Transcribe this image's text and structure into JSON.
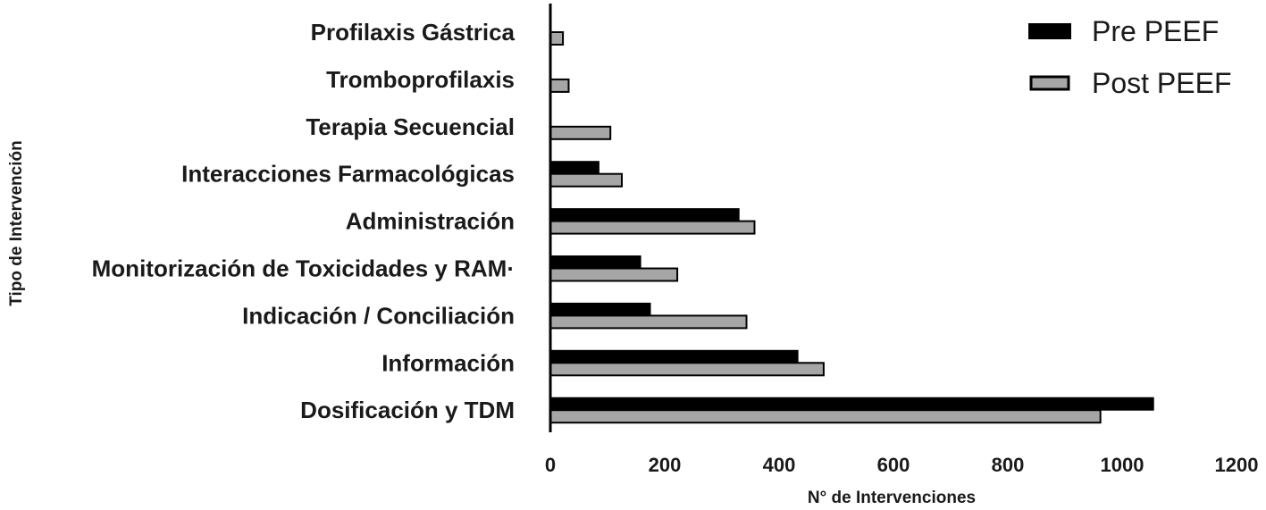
{
  "chart_data": {
    "type": "bar",
    "orientation": "horizontal",
    "categories": [
      "Profilaxis Gástrica",
      "Tromboprofilaxis",
      "Terapia Secuencial",
      "Interacciones Farmacológicas",
      "Administración",
      "Monitorización de Toxicidades y RAM·",
      "Indicación / Conciliación",
      "Información",
      "Dosificación y TDM"
    ],
    "series": [
      {
        "name": "Pre PEEF",
        "color": "#000000",
        "values": [
          0,
          0,
          0,
          85,
          330,
          158,
          175,
          433,
          1055
        ]
      },
      {
        "name": "Post PEEF",
        "color": "#a6a6a6",
        "values": [
          22,
          32,
          105,
          125,
          357,
          222,
          343,
          478,
          962
        ]
      }
    ],
    "title": "",
    "xlabel": "N° de Intervenciones",
    "ylabel": "Tipo de Intervención",
    "xlim": [
      0,
      1200
    ],
    "xticks": [
      0,
      200,
      400,
      600,
      800,
      1000,
      1200
    ],
    "legend_position": "top-right",
    "grid": false
  }
}
